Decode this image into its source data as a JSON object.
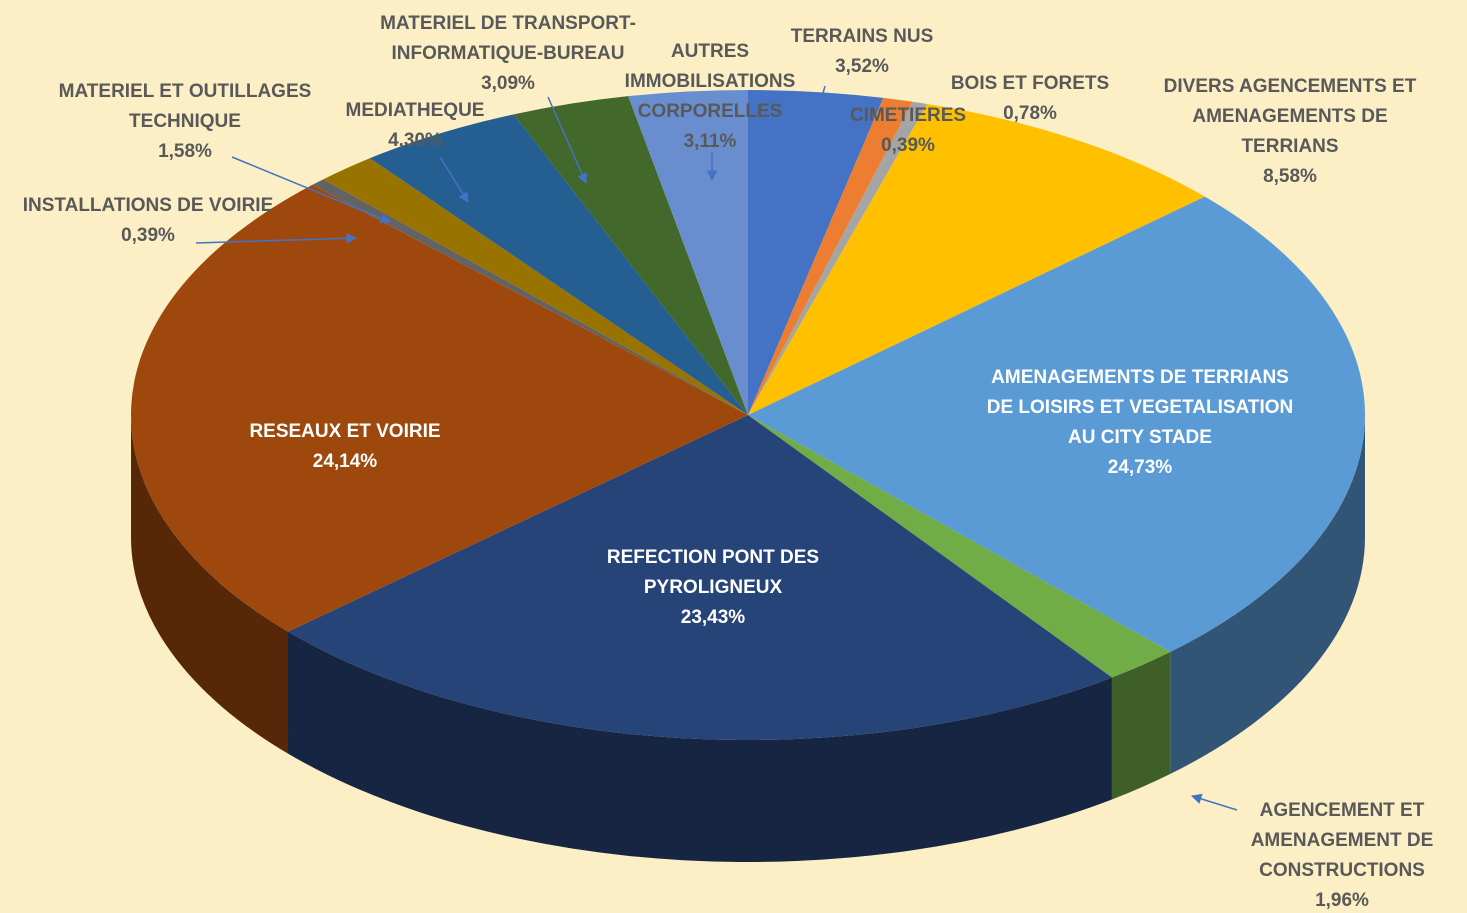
{
  "chart_data": {
    "type": "pie",
    "categories": [
      "TERRAINS NUS",
      "BOIS ET FORETS",
      "CIMETIERES",
      "DIVERS AGENCEMENTS ET AMENAGEMENTS DE TERRIANS",
      "AMENAGEMENTS DE TERRIANS DE LOISIRS ET VEGETALISATION AU CITY STADE",
      "AGENCEMENT ET AMENAGEMENT DE CONSTRUCTIONS",
      "REFECTION PONT DES PYROLIGNEUX",
      "RESEAUX ET  VOIRIE",
      "INSTALLATIONS DE VOIRIE",
      "MATERIEL ET OUTILLAGES TECHNIQUE",
      "MEDIATHEQUE",
      "MATERIEL DE TRANSPORT-INFORMATIQUE-BUREAU",
      "AUTRES IMMOBILISATIONS CORPORELLES"
    ],
    "values": [
      3.52,
      0.78,
      0.39,
      8.58,
      24.73,
      1.96,
      23.43,
      24.14,
      0.39,
      1.58,
      4.3,
      3.09,
      3.11
    ],
    "value_labels": [
      "3,52%",
      "0,78%",
      "0,39%",
      "8,58%",
      "24,73%",
      "1,96%",
      "23,43%",
      "24,14%",
      "0,39%",
      "1,58%",
      "4,30%",
      "3,09%",
      "3,11%"
    ],
    "colors": [
      "#4472c4",
      "#ed7d31",
      "#a5a5a5",
      "#ffc000",
      "#5b9bd5",
      "#70ad47",
      "#264478",
      "#9e480e",
      "#636363",
      "#997300",
      "#255e91",
      "#43682b",
      "#698ed0"
    ]
  }
}
